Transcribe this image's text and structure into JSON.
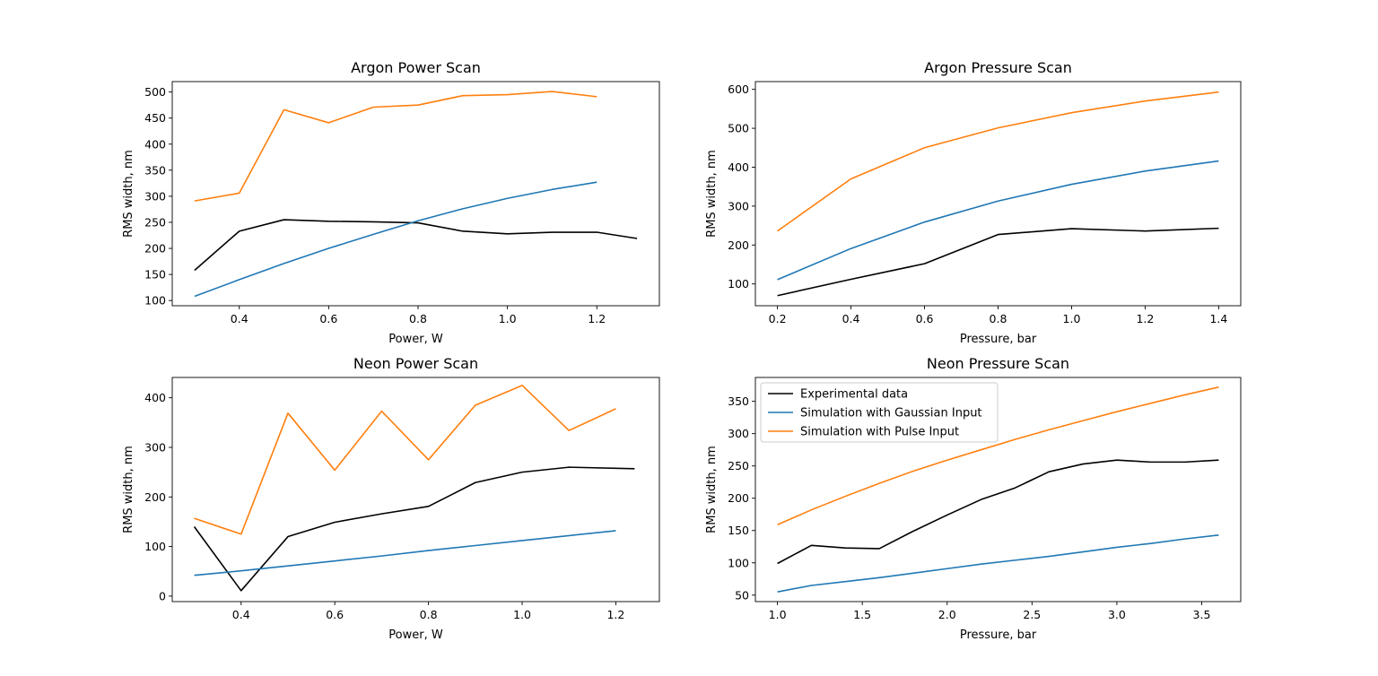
{
  "colors": {
    "experimental": "#000000",
    "gaussian": "#1f77b4",
    "pulse": "#ff7f0e"
  },
  "chart_data": [
    {
      "type": "line",
      "title": "Argon Power Scan",
      "xlabel": "Power, W",
      "ylabel": "RMS width, nm",
      "xlim": [
        0.25,
        1.34
      ],
      "ylim": [
        90,
        520
      ],
      "xticks": [
        0.4,
        0.6,
        0.8,
        1.0,
        1.2
      ],
      "xtick_labels": [
        "0.4",
        "0.6",
        "0.8",
        "1.0",
        "1.2"
      ],
      "yticks": [
        100,
        150,
        200,
        250,
        300,
        350,
        400,
        450,
        500
      ],
      "ytick_labels": [
        "100",
        "150",
        "200",
        "250",
        "300",
        "350",
        "400",
        "450",
        "500"
      ],
      "grid": false,
      "series": [
        {
          "name": "Experimental data",
          "color": "#000000",
          "x": [
            0.3,
            0.4,
            0.5,
            0.6,
            0.7,
            0.8,
            0.9,
            1.0,
            1.1,
            1.2,
            1.29
          ],
          "y": [
            158,
            233,
            255,
            252,
            251,
            249,
            233,
            228,
            231,
            231,
            219
          ]
        },
        {
          "name": "Simulation with Gaussian Input",
          "color": "#1f77b4",
          "x": [
            0.3,
            0.4,
            0.5,
            0.6,
            0.7,
            0.8,
            0.9,
            1.0,
            1.1,
            1.2
          ],
          "y": [
            108,
            140,
            171,
            200,
            227,
            253,
            276,
            296,
            313,
            327
          ]
        },
        {
          "name": "Simulation with Pulse Input",
          "color": "#ff7f0e",
          "x": [
            0.3,
            0.4,
            0.5,
            0.6,
            0.7,
            0.8,
            0.9,
            1.0,
            1.1,
            1.2
          ],
          "y": [
            291,
            306,
            466,
            441,
            471,
            475,
            493,
            495,
            501,
            491
          ]
        }
      ]
    },
    {
      "type": "line",
      "title": "Argon Pressure Scan",
      "xlabel": "Pressure, bar",
      "ylabel": "RMS width, nm",
      "xlim": [
        0.14,
        1.46
      ],
      "ylim": [
        44,
        620
      ],
      "xticks": [
        0.2,
        0.4,
        0.6,
        0.8,
        1.0,
        1.2,
        1.4
      ],
      "xtick_labels": [
        "0.2",
        "0.4",
        "0.6",
        "0.8",
        "1.0",
        "1.2",
        "1.4"
      ],
      "yticks": [
        100,
        200,
        300,
        400,
        500,
        600
      ],
      "ytick_labels": [
        "100",
        "200",
        "300",
        "400",
        "500",
        "600"
      ],
      "grid": false,
      "series": [
        {
          "name": "Experimental data",
          "color": "#000000",
          "x": [
            0.2,
            0.4,
            0.6,
            0.8,
            1.0,
            1.2,
            1.4
          ],
          "y": [
            70,
            112,
            152,
            227,
            242,
            236,
            243
          ]
        },
        {
          "name": "Simulation with Gaussian Input",
          "color": "#1f77b4",
          "x": [
            0.2,
            0.4,
            0.6,
            0.8,
            1.0,
            1.2,
            1.4
          ],
          "y": [
            111,
            191,
            259,
            313,
            356,
            390,
            416
          ]
        },
        {
          "name": "Simulation with Pulse Input",
          "color": "#ff7f0e",
          "x": [
            0.2,
            0.4,
            0.6,
            0.8,
            1.0,
            1.2,
            1.4
          ],
          "y": [
            236,
            370,
            450,
            501,
            540,
            570,
            593
          ]
        }
      ]
    },
    {
      "type": "line",
      "title": "Neon Power Scan",
      "xlabel": "Power, W",
      "ylabel": "RMS width, nm",
      "xlim": [
        0.253,
        1.293
      ],
      "ylim": [
        -11,
        441
      ],
      "xticks": [
        0.4,
        0.6,
        0.8,
        1.0,
        1.2
      ],
      "xtick_labels": [
        "0.4",
        "0.6",
        "0.8",
        "1.0",
        "1.2"
      ],
      "yticks": [
        0,
        100,
        200,
        300,
        400
      ],
      "ytick_labels": [
        "0",
        "100",
        "200",
        "300",
        "400"
      ],
      "grid": false,
      "series": [
        {
          "name": "Experimental data",
          "color": "#000000",
          "x": [
            0.3,
            0.4,
            0.5,
            0.6,
            0.7,
            0.8,
            0.9,
            1.0,
            1.1,
            1.24
          ],
          "y": [
            140,
            11,
            120,
            149,
            166,
            181,
            229,
            250,
            260,
            257
          ]
        },
        {
          "name": "Simulation with Gaussian Input",
          "color": "#1f77b4",
          "x": [
            0.3,
            0.4,
            0.5,
            0.6,
            0.7,
            0.8,
            0.9,
            1.0,
            1.1,
            1.2
          ],
          "y": [
            42,
            51,
            61,
            71,
            81,
            92,
            102,
            112,
            122,
            132
          ]
        },
        {
          "name": "Simulation with Pulse Input",
          "color": "#ff7f0e",
          "x": [
            0.3,
            0.4,
            0.5,
            0.6,
            0.7,
            0.8,
            0.9,
            1.0,
            1.1,
            1.2
          ],
          "y": [
            157,
            125,
            369,
            254,
            373,
            275,
            385,
            425,
            334,
            378
          ]
        }
      ]
    },
    {
      "type": "line",
      "title": "Neon Pressure Scan",
      "xlabel": "Pressure, bar",
      "ylabel": "RMS width, nm",
      "xlim": [
        0.87,
        3.73
      ],
      "ylim": [
        40,
        387
      ],
      "xticks": [
        1.0,
        1.5,
        2.0,
        2.5,
        3.0,
        3.5
      ],
      "xtick_labels": [
        "1.0",
        "1.5",
        "2.0",
        "2.5",
        "3.0",
        "3.5"
      ],
      "yticks": [
        50,
        100,
        150,
        200,
        250,
        300,
        350
      ],
      "ytick_labels": [
        "50",
        "100",
        "150",
        "200",
        "250",
        "300",
        "350"
      ],
      "grid": false,
      "legend": {
        "placement": "upper-left",
        "entries": [
          "Experimental data",
          "Simulation with Gaussian Input",
          "Simulation with Pulse Input"
        ]
      },
      "series": [
        {
          "name": "Experimental data",
          "color": "#000000",
          "x": [
            1.0,
            1.2,
            1.4,
            1.6,
            1.8,
            2.0,
            2.2,
            2.4,
            2.6,
            2.8,
            3.0,
            3.2,
            3.4,
            3.6
          ],
          "y": [
            99,
            127,
            123,
            122,
            149,
            174,
            198,
            216,
            241,
            253,
            259,
            256,
            256,
            259
          ]
        },
        {
          "name": "Simulation with Gaussian Input",
          "color": "#1f77b4",
          "x": [
            1.0,
            1.2,
            1.4,
            1.6,
            1.8,
            2.0,
            2.2,
            2.4,
            2.6,
            2.8,
            3.0,
            3.2,
            3.4,
            3.6
          ],
          "y": [
            55,
            65,
            71,
            77,
            84,
            91,
            98,
            104,
            110,
            117,
            124,
            130,
            137,
            143
          ]
        },
        {
          "name": "Simulation with Pulse Input",
          "color": "#ff7f0e",
          "x": [
            1.0,
            1.2,
            1.4,
            1.6,
            1.8,
            2.0,
            2.2,
            2.4,
            2.6,
            2.8,
            3.0,
            3.2,
            3.4,
            3.6
          ],
          "y": [
            159,
            182,
            203,
            223,
            242,
            259,
            275,
            291,
            306,
            320,
            334,
            347,
            360,
            372
          ]
        }
      ]
    }
  ]
}
